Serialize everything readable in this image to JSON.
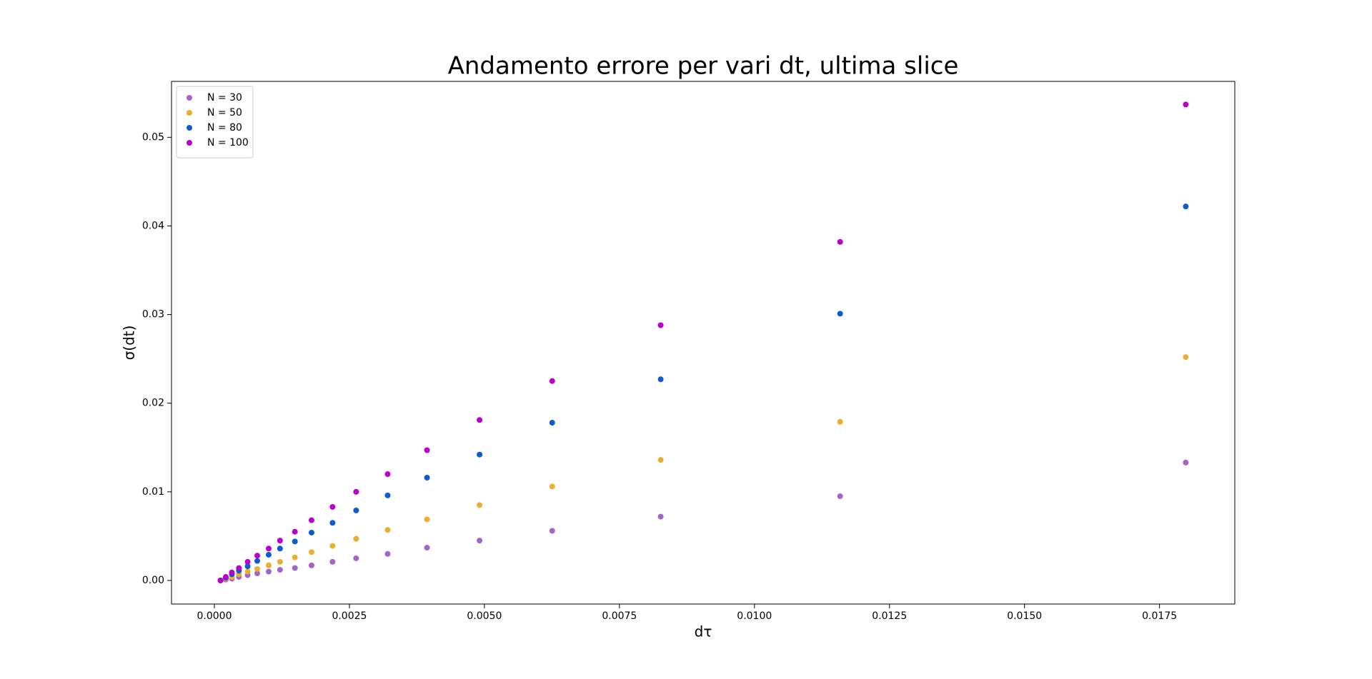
{
  "chart_data": {
    "type": "scatter",
    "title": "Andamento errore per vari dt, ultima slice",
    "xlabel": "dτ",
    "ylabel": "σ(dt)",
    "x": [
      0.000113,
      0.000211,
      0.000324,
      0.000454,
      0.000616,
      0.000794,
      0.001005,
      0.001215,
      0.001491,
      0.001799,
      0.002188,
      0.002625,
      0.003208,
      0.003937,
      0.00491,
      0.006255,
      0.008264,
      0.011586,
      0.017986
    ],
    "series": [
      {
        "name": "N = 30",
        "color": "#a066c8",
        "values": [
          0.0,
          0.0001,
          0.0002,
          0.0004,
          0.0006,
          0.0008,
          0.001,
          0.0012,
          0.0014,
          0.0017,
          0.0021,
          0.0025,
          0.003,
          0.0037,
          0.0045,
          0.0056,
          0.0072,
          0.0095,
          0.0133
        ]
      },
      {
        "name": "N = 50",
        "color": "#e8b030",
        "values": [
          0.0,
          0.0002,
          0.0004,
          0.0007,
          0.001,
          0.0013,
          0.0017,
          0.0021,
          0.0026,
          0.0032,
          0.0039,
          0.0047,
          0.0057,
          0.0069,
          0.0085,
          0.0106,
          0.0136,
          0.0179,
          0.0252
        ]
      },
      {
        "name": "N = 80",
        "color": "#0d5bd0",
        "values": [
          0.0,
          0.0003,
          0.0007,
          0.0011,
          0.0016,
          0.0022,
          0.0029,
          0.0036,
          0.0044,
          0.0054,
          0.0065,
          0.0079,
          0.0096,
          0.0116,
          0.0142,
          0.0178,
          0.0227,
          0.0301,
          0.0422
        ]
      },
      {
        "name": "N = 100",
        "color": "#bb00cc",
        "values": [
          0.0,
          0.0004,
          0.0009,
          0.0014,
          0.0021,
          0.0028,
          0.0036,
          0.0045,
          0.0055,
          0.0068,
          0.0083,
          0.01,
          0.012,
          0.0147,
          0.0181,
          0.0225,
          0.0288,
          0.0382,
          0.0537
        ]
      }
    ],
    "xlim": [
      -0.000794,
      0.018894
    ],
    "ylim": [
      -0.00266,
      0.05631
    ],
    "xticks": [
      {
        "value": 0,
        "label": "0.0000"
      },
      {
        "value": 0.0025,
        "label": "0.0025"
      },
      {
        "value": 0.005,
        "label": "0.0050"
      },
      {
        "value": 0.0075,
        "label": "0.0075"
      },
      {
        "value": 0.01,
        "label": "0.0100"
      },
      {
        "value": 0.0125,
        "label": "0.0125"
      },
      {
        "value": 0.015,
        "label": "0.0150"
      },
      {
        "value": 0.0175,
        "label": "0.0175"
      }
    ],
    "yticks": [
      {
        "value": 0,
        "label": "0.00"
      },
      {
        "value": 0.01,
        "label": "0.01"
      },
      {
        "value": 0.02,
        "label": "0.02"
      },
      {
        "value": 0.03,
        "label": "0.03"
      },
      {
        "value": 0.04,
        "label": "0.04"
      },
      {
        "value": 0.05,
        "label": "0.05"
      }
    ],
    "legend": "upper left",
    "grid": false
  }
}
